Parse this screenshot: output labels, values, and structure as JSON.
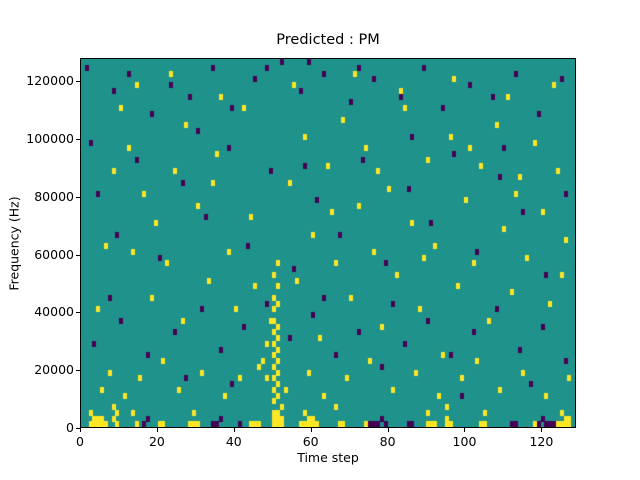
{
  "chart_data": {
    "type": "heatmap",
    "title": "Predicted : PM",
    "xlabel": "Time step",
    "ylabel": "Frequency (Hz)",
    "xlim": [
      0,
      129
    ],
    "ylim": [
      0,
      128000
    ],
    "x_bins": 129,
    "y_bins": 64,
    "y_bin_hz": 2000,
    "xticks": [
      0,
      20,
      40,
      60,
      80,
      100,
      120
    ],
    "yticks": [
      0,
      20000,
      40000,
      60000,
      80000,
      100000,
      120000
    ],
    "legend": "none",
    "grid": false,
    "colors": {
      "background_mid": "#20928c",
      "high_yellow": "#fde725",
      "low_purple": "#440154",
      "axis": "#000000"
    },
    "cells_yellow": [
      [
        2,
        0
      ],
      [
        3,
        0
      ],
      [
        4,
        0
      ],
      [
        5,
        0
      ],
      [
        6,
        0
      ],
      [
        9,
        0
      ],
      [
        14,
        0
      ],
      [
        20,
        0
      ],
      [
        21,
        0
      ],
      [
        28,
        0
      ],
      [
        29,
        0
      ],
      [
        30,
        0
      ],
      [
        44,
        0
      ],
      [
        45,
        0
      ],
      [
        46,
        0
      ],
      [
        50,
        0
      ],
      [
        51,
        0
      ],
      [
        52,
        0
      ],
      [
        57,
        0
      ],
      [
        58,
        0
      ],
      [
        59,
        0
      ],
      [
        60,
        0
      ],
      [
        61,
        0
      ],
      [
        67,
        0
      ],
      [
        68,
        0
      ],
      [
        74,
        0
      ],
      [
        90,
        0
      ],
      [
        91,
        0
      ],
      [
        92,
        0
      ],
      [
        95,
        0
      ],
      [
        96,
        0
      ],
      [
        104,
        0
      ],
      [
        105,
        0
      ],
      [
        118,
        0
      ],
      [
        124,
        0
      ],
      [
        125,
        0
      ],
      [
        126,
        0
      ],
      [
        127,
        0
      ],
      [
        3,
        1
      ],
      [
        4,
        1
      ],
      [
        5,
        1
      ],
      [
        8,
        1
      ],
      [
        50,
        1
      ],
      [
        51,
        1
      ],
      [
        52,
        1
      ],
      [
        59,
        1
      ],
      [
        60,
        1
      ],
      [
        95,
        1
      ],
      [
        126,
        1
      ],
      [
        127,
        1
      ],
      [
        2,
        2
      ],
      [
        9,
        2
      ],
      [
        13,
        2
      ],
      [
        29,
        2
      ],
      [
        50,
        2
      ],
      [
        51,
        2
      ],
      [
        58,
        2
      ],
      [
        90,
        2
      ],
      [
        105,
        2
      ],
      [
        125,
        2
      ],
      [
        8,
        3
      ],
      [
        52,
        3
      ],
      [
        66,
        3
      ],
      [
        95,
        3
      ],
      [
        50,
        4
      ],
      [
        51,
        5
      ],
      [
        50,
        6
      ],
      [
        51,
        7
      ],
      [
        50,
        8
      ],
      [
        48,
        8
      ],
      [
        51,
        9
      ],
      [
        50,
        10
      ],
      [
        51,
        11
      ],
      [
        50,
        12
      ],
      [
        51,
        13
      ],
      [
        50,
        14
      ],
      [
        48,
        14
      ],
      [
        51,
        15
      ],
      [
        50,
        16
      ],
      [
        51,
        17
      ],
      [
        50,
        18
      ],
      [
        49,
        18
      ],
      [
        50,
        20
      ],
      [
        51,
        21
      ],
      [
        50,
        22
      ],
      [
        51,
        24
      ],
      [
        50,
        26
      ],
      [
        51,
        28
      ],
      [
        5,
        6
      ],
      [
        7,
        9
      ],
      [
        11,
        5
      ],
      [
        15,
        8
      ],
      [
        21,
        11
      ],
      [
        25,
        6
      ],
      [
        31,
        9
      ],
      [
        37,
        5
      ],
      [
        41,
        8
      ],
      [
        47,
        11
      ],
      [
        53,
        6
      ],
      [
        59,
        9
      ],
      [
        63,
        5
      ],
      [
        69,
        8
      ],
      [
        75,
        11
      ],
      [
        81,
        6
      ],
      [
        87,
        9
      ],
      [
        93,
        5
      ],
      [
        99,
        8
      ],
      [
        103,
        11
      ],
      [
        109,
        6
      ],
      [
        115,
        9
      ],
      [
        121,
        5
      ],
      [
        127,
        8
      ],
      [
        6,
        31
      ],
      [
        10,
        55
      ],
      [
        12,
        48
      ],
      [
        16,
        40
      ],
      [
        18,
        22
      ],
      [
        19,
        35
      ],
      [
        22,
        28
      ],
      [
        24,
        44
      ],
      [
        26,
        18
      ],
      [
        27,
        52
      ],
      [
        30,
        38
      ],
      [
        33,
        25
      ],
      [
        35,
        47
      ],
      [
        38,
        30
      ],
      [
        40,
        20
      ],
      [
        42,
        55
      ],
      [
        44,
        36
      ],
      [
        46,
        10
      ],
      [
        54,
        42
      ],
      [
        56,
        25
      ],
      [
        58,
        50
      ],
      [
        60,
        33
      ],
      [
        62,
        15
      ],
      [
        64,
        45
      ],
      [
        66,
        28
      ],
      [
        68,
        53
      ],
      [
        70,
        22
      ],
      [
        72,
        38
      ],
      [
        74,
        48
      ],
      [
        76,
        30
      ],
      [
        78,
        17
      ],
      [
        80,
        41
      ],
      [
        82,
        26
      ],
      [
        84,
        55
      ],
      [
        86,
        35
      ],
      [
        88,
        20
      ],
      [
        90,
        46
      ],
      [
        92,
        31
      ],
      [
        94,
        12
      ],
      [
        96,
        50
      ],
      [
        98,
        24
      ],
      [
        100,
        39
      ],
      [
        102,
        28
      ],
      [
        104,
        45
      ],
      [
        106,
        18
      ],
      [
        108,
        52
      ],
      [
        110,
        34
      ],
      [
        112,
        23
      ],
      [
        114,
        43
      ],
      [
        116,
        29
      ],
      [
        118,
        49
      ],
      [
        120,
        37
      ],
      [
        122,
        21
      ],
      [
        124,
        44
      ],
      [
        126,
        32
      ],
      [
        8,
        44
      ],
      [
        14,
        59
      ],
      [
        23,
        61
      ],
      [
        36,
        57
      ],
      [
        55,
        59
      ],
      [
        71,
        61
      ],
      [
        83,
        58
      ],
      [
        97,
        60
      ],
      [
        111,
        57
      ],
      [
        123,
        59
      ],
      [
        4,
        20
      ],
      [
        13,
        30
      ],
      [
        34,
        42
      ],
      [
        45,
        24
      ],
      [
        65,
        37
      ],
      [
        77,
        44
      ],
      [
        89,
        29
      ],
      [
        101,
        48
      ],
      [
        113,
        40
      ],
      [
        125,
        26
      ]
    ],
    "cells_purple": [
      [
        1,
        62
      ],
      [
        8,
        58
      ],
      [
        12,
        61
      ],
      [
        18,
        54
      ],
      [
        23,
        59
      ],
      [
        28,
        57
      ],
      [
        34,
        62
      ],
      [
        39,
        55
      ],
      [
        45,
        60
      ],
      [
        52,
        63
      ],
      [
        57,
        58
      ],
      [
        63,
        61
      ],
      [
        70,
        56
      ],
      [
        76,
        60
      ],
      [
        83,
        57
      ],
      [
        89,
        62
      ],
      [
        94,
        55
      ],
      [
        101,
        59
      ],
      [
        107,
        57
      ],
      [
        113,
        61
      ],
      [
        119,
        54
      ],
      [
        125,
        60
      ],
      [
        48,
        62
      ],
      [
        59,
        63
      ],
      [
        72,
        62
      ],
      [
        4,
        40
      ],
      [
        9,
        33
      ],
      [
        14,
        46
      ],
      [
        20,
        29
      ],
      [
        26,
        42
      ],
      [
        32,
        36
      ],
      [
        38,
        48
      ],
      [
        43,
        31
      ],
      [
        49,
        44
      ],
      [
        55,
        27
      ],
      [
        61,
        39
      ],
      [
        67,
        33
      ],
      [
        73,
        46
      ],
      [
        79,
        28
      ],
      [
        85,
        41
      ],
      [
        91,
        35
      ],
      [
        97,
        47
      ],
      [
        103,
        30
      ],
      [
        109,
        43
      ],
      [
        115,
        37
      ],
      [
        121,
        26
      ],
      [
        126,
        40
      ],
      [
        2,
        49
      ],
      [
        30,
        51
      ],
      [
        58,
        45
      ],
      [
        86,
        50
      ],
      [
        110,
        48
      ],
      [
        3,
        14
      ],
      [
        10,
        18
      ],
      [
        17,
        12
      ],
      [
        24,
        16
      ],
      [
        31,
        20
      ],
      [
        36,
        13
      ],
      [
        42,
        17
      ],
      [
        48,
        21
      ],
      [
        54,
        15
      ],
      [
        60,
        19
      ],
      [
        66,
        12
      ],
      [
        72,
        16
      ],
      [
        78,
        10
      ],
      [
        84,
        14
      ],
      [
        90,
        18
      ],
      [
        96,
        12
      ],
      [
        102,
        16
      ],
      [
        108,
        20
      ],
      [
        114,
        13
      ],
      [
        120,
        17
      ],
      [
        126,
        11
      ],
      [
        7,
        22
      ],
      [
        27,
        8
      ],
      [
        39,
        7
      ],
      [
        63,
        22
      ],
      [
        81,
        21
      ],
      [
        99,
        5
      ],
      [
        117,
        7
      ],
      [
        34,
        0
      ],
      [
        35,
        0
      ],
      [
        36,
        1
      ],
      [
        75,
        0
      ],
      [
        76,
        0
      ],
      [
        77,
        0
      ],
      [
        78,
        1
      ],
      [
        79,
        0
      ],
      [
        85,
        0
      ],
      [
        86,
        0
      ],
      [
        112,
        0
      ],
      [
        113,
        0
      ],
      [
        119,
        0
      ],
      [
        120,
        1
      ],
      [
        121,
        0
      ],
      [
        122,
        0
      ],
      [
        123,
        0
      ],
      [
        16,
        0
      ],
      [
        17,
        1
      ],
      [
        41,
        0
      ]
    ]
  }
}
